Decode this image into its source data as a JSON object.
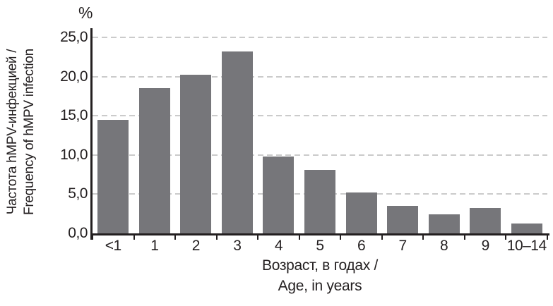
{
  "figure": {
    "y_unit_label": "%",
    "y_axis_title_line1": "Частота hMPV-инфекцией /",
    "y_axis_title_line2": "Frequency of hMPV infection",
    "x_axis_title_line1": "Возраст, в годах /",
    "x_axis_title_line2": "Age, in years"
  },
  "chart_data": {
    "type": "bar",
    "categories": [
      "<1",
      "1",
      "2",
      "3",
      "4",
      "5",
      "6",
      "7",
      "8",
      "9",
      "10–14"
    ],
    "values": [
      14.5,
      18.5,
      20.2,
      23.2,
      9.8,
      8.1,
      5.2,
      3.5,
      2.4,
      3.2,
      1.3
    ],
    "xlabel": "Возраст, в годах / Age, in years",
    "ylabel": "Частота hMPV-инфекцией / Frequency of hMPV infection",
    "y_unit": "%",
    "ylim": [
      0,
      25.9
    ],
    "yticks": [
      0,
      5,
      10,
      15,
      20,
      25
    ],
    "ytick_labels": [
      "0,0",
      "5,0",
      "10,0",
      "15,0",
      "20,0",
      "25,0"
    ],
    "grid": "horizontal-dashed",
    "legend": "none",
    "colors": {
      "bar": "#76767a",
      "grid": "#cbcbcb",
      "axis": "#231f20",
      "text": "#231f20",
      "background": "#ffffff"
    }
  }
}
